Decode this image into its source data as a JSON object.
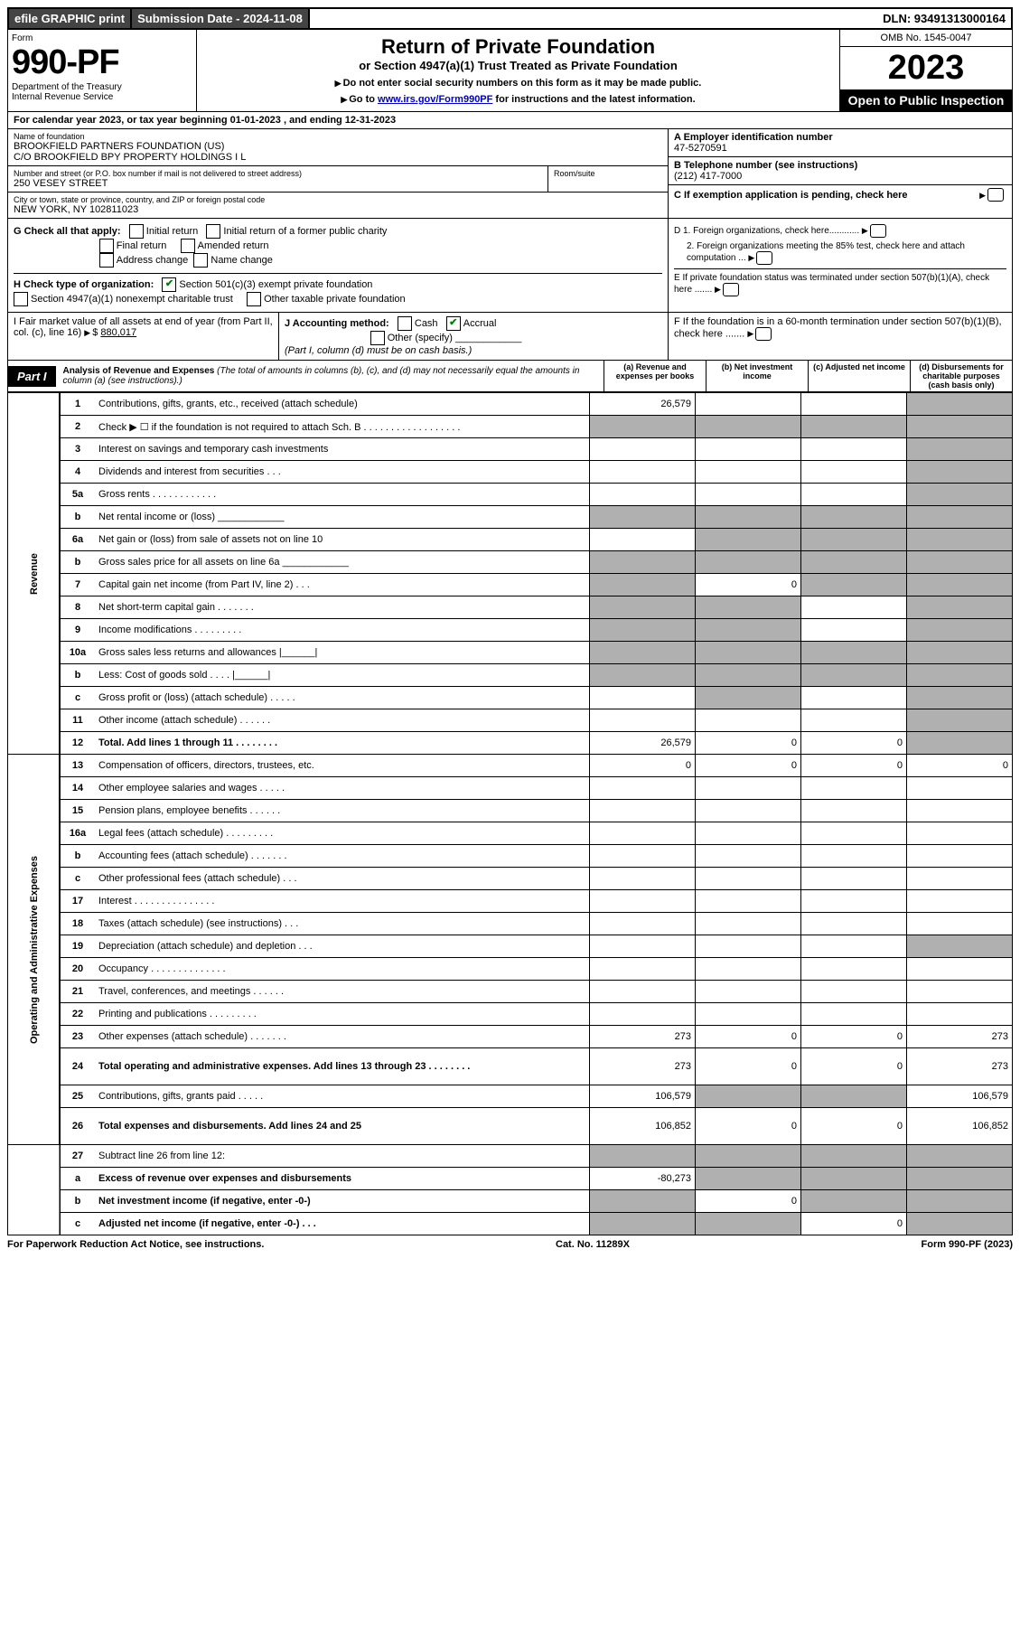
{
  "top_bar": {
    "efile": "efile GRAPHIC print",
    "submission": "Submission Date - 2024-11-08",
    "dln": "DLN: 93491313000164"
  },
  "header": {
    "form": "Form",
    "number": "990-PF",
    "dept1": "Department of the Treasury",
    "dept2": "Internal Revenue Service",
    "title": "Return of Private Foundation",
    "subtitle": "or Section 4947(a)(1) Trust Treated as Private Foundation",
    "note1": "Do not enter social security numbers on this form as it may be made public.",
    "note2_pre": "Go to ",
    "note2_link": "www.irs.gov/Form990PF",
    "note2_post": " for instructions and the latest information.",
    "omb": "OMB No. 1545-0047",
    "year": "2023",
    "open": "Open to Public Inspection"
  },
  "cal_year": "For calendar year 2023, or tax year beginning 01-01-2023    , and ending 12-31-2023",
  "info": {
    "name_label": "Name of foundation",
    "name1": "BROOKFIELD PARTNERS FOUNDATION (US)",
    "name2": "C/O BROOKFIELD BPY PROPERTY HOLDINGS I L",
    "addr_label": "Number and street (or P.O. box number if mail is not delivered to street address)",
    "addr": "250 VESEY STREET",
    "room_label": "Room/suite",
    "city_label": "City or town, state or province, country, and ZIP or foreign postal code",
    "city": "NEW YORK, NY  102811023",
    "a_label": "A Employer identification number",
    "ein": "47-5270591",
    "b_label": "B Telephone number (see instructions)",
    "phone": "(212) 417-7000",
    "c_label": "C If exemption application is pending, check here"
  },
  "g": {
    "label": "G Check all that apply:",
    "initial": "Initial return",
    "final": "Final return",
    "addr_change": "Address change",
    "initial_former": "Initial return of a former public charity",
    "amended": "Amended return",
    "name_change": "Name change"
  },
  "h": {
    "label": "H Check type of organization:",
    "opt1": "Section 501(c)(3) exempt private foundation",
    "opt2": "Section 4947(a)(1) nonexempt charitable trust",
    "opt3": "Other taxable private foundation"
  },
  "d": {
    "d1": "D 1. Foreign organizations, check here............",
    "d2": "2. Foreign organizations meeting the 85% test, check here and attach computation ...",
    "e": "E  If private foundation status was terminated under section 507(b)(1)(A), check here .......",
    "f": "F  If the foundation is in a 60-month termination under section 507(b)(1)(B), check here ......."
  },
  "i": {
    "label": "I Fair market value of all assets at end of year (from Part II, col. (c), line 16)",
    "value": "880,017"
  },
  "j": {
    "label": "J Accounting method:",
    "cash": "Cash",
    "accrual": "Accrual",
    "other": "Other (specify)",
    "note": "(Part I, column (d) must be on cash basis.)"
  },
  "part1": {
    "tag": "Part I",
    "title": "Analysis of Revenue and Expenses",
    "note": " (The total of amounts in columns (b), (c), and (d) may not necessarily equal the amounts in column (a) (see instructions).)",
    "col_a": "(a) Revenue and expenses per books",
    "col_b": "(b) Net investment income",
    "col_c": "(c) Adjusted net income",
    "col_d": "(d) Disbursements for charitable purposes (cash basis only)"
  },
  "rows": [
    {
      "sec": "rev",
      "no": "1",
      "desc": "Contributions, gifts, grants, etc., received (attach schedule)",
      "a": "26,579",
      "b": "",
      "c": "",
      "d": "shaded"
    },
    {
      "sec": "rev",
      "no": "2",
      "desc": "Check ▶ ☐ if the foundation is not required to attach Sch. B  . . . . . . . . . . . . . . . . . .",
      "a": "shaded",
      "b": "shaded",
      "c": "shaded",
      "d": "shaded"
    },
    {
      "sec": "rev",
      "no": "3",
      "desc": "Interest on savings and temporary cash investments",
      "a": "",
      "b": "",
      "c": "",
      "d": "shaded"
    },
    {
      "sec": "rev",
      "no": "4",
      "desc": "Dividends and interest from securities  . . .",
      "a": "",
      "b": "",
      "c": "",
      "d": "shaded"
    },
    {
      "sec": "rev",
      "no": "5a",
      "desc": "Gross rents  . . . . . . . . . . . .",
      "a": "",
      "b": "",
      "c": "",
      "d": "shaded"
    },
    {
      "sec": "rev",
      "no": "b",
      "desc": "Net rental income or (loss)  ____________",
      "a": "shaded",
      "b": "shaded",
      "c": "shaded",
      "d": "shaded"
    },
    {
      "sec": "rev",
      "no": "6a",
      "desc": "Net gain or (loss) from sale of assets not on line 10",
      "a": "",
      "b": "shaded",
      "c": "shaded",
      "d": "shaded"
    },
    {
      "sec": "rev",
      "no": "b",
      "desc": "Gross sales price for all assets on line 6a ____________",
      "a": "shaded",
      "b": "shaded",
      "c": "shaded",
      "d": "shaded"
    },
    {
      "sec": "rev",
      "no": "7",
      "desc": "Capital gain net income (from Part IV, line 2)  . . .",
      "a": "shaded",
      "b": "0",
      "c": "shaded",
      "d": "shaded"
    },
    {
      "sec": "rev",
      "no": "8",
      "desc": "Net short-term capital gain  . . . . . . .",
      "a": "shaded",
      "b": "shaded",
      "c": "",
      "d": "shaded"
    },
    {
      "sec": "rev",
      "no": "9",
      "desc": "Income modifications  . . . . . . . . .",
      "a": "shaded",
      "b": "shaded",
      "c": "",
      "d": "shaded"
    },
    {
      "sec": "rev",
      "no": "10a",
      "desc": "Gross sales less returns and allowances  |______|",
      "a": "shaded",
      "b": "shaded",
      "c": "shaded",
      "d": "shaded"
    },
    {
      "sec": "rev",
      "no": "b",
      "desc": "Less: Cost of goods sold  . . . .  |______|",
      "a": "shaded",
      "b": "shaded",
      "c": "shaded",
      "d": "shaded"
    },
    {
      "sec": "rev",
      "no": "c",
      "desc": "Gross profit or (loss) (attach schedule)  . . . . .",
      "a": "",
      "b": "shaded",
      "c": "",
      "d": "shaded"
    },
    {
      "sec": "rev",
      "no": "11",
      "desc": "Other income (attach schedule)  . . . . . .",
      "a": "",
      "b": "",
      "c": "",
      "d": "shaded"
    },
    {
      "sec": "rev",
      "no": "12",
      "desc": "Total. Add lines 1 through 11  . . . . . . . .",
      "a": "26,579",
      "b": "0",
      "c": "0",
      "d": "shaded",
      "bold": true
    },
    {
      "sec": "exp",
      "no": "13",
      "desc": "Compensation of officers, directors, trustees, etc.",
      "a": "0",
      "b": "0",
      "c": "0",
      "d": "0"
    },
    {
      "sec": "exp",
      "no": "14",
      "desc": "Other employee salaries and wages  . . . . .",
      "a": "",
      "b": "",
      "c": "",
      "d": ""
    },
    {
      "sec": "exp",
      "no": "15",
      "desc": "Pension plans, employee benefits  . . . . . .",
      "a": "",
      "b": "",
      "c": "",
      "d": ""
    },
    {
      "sec": "exp",
      "no": "16a",
      "desc": "Legal fees (attach schedule) . . . . . . . . .",
      "a": "",
      "b": "",
      "c": "",
      "d": ""
    },
    {
      "sec": "exp",
      "no": "b",
      "desc": "Accounting fees (attach schedule) . . . . . . .",
      "a": "",
      "b": "",
      "c": "",
      "d": ""
    },
    {
      "sec": "exp",
      "no": "c",
      "desc": "Other professional fees (attach schedule)  . . .",
      "a": "",
      "b": "",
      "c": "",
      "d": ""
    },
    {
      "sec": "exp",
      "no": "17",
      "desc": "Interest . . . . . . . . . . . . . . .",
      "a": "",
      "b": "",
      "c": "",
      "d": ""
    },
    {
      "sec": "exp",
      "no": "18",
      "desc": "Taxes (attach schedule) (see instructions)  . . .",
      "a": "",
      "b": "",
      "c": "",
      "d": ""
    },
    {
      "sec": "exp",
      "no": "19",
      "desc": "Depreciation (attach schedule) and depletion  . . .",
      "a": "",
      "b": "",
      "c": "",
      "d": "shaded"
    },
    {
      "sec": "exp",
      "no": "20",
      "desc": "Occupancy . . . . . . . . . . . . . .",
      "a": "",
      "b": "",
      "c": "",
      "d": ""
    },
    {
      "sec": "exp",
      "no": "21",
      "desc": "Travel, conferences, and meetings . . . . . .",
      "a": "",
      "b": "",
      "c": "",
      "d": ""
    },
    {
      "sec": "exp",
      "no": "22",
      "desc": "Printing and publications . . . . . . . . .",
      "a": "",
      "b": "",
      "c": "",
      "d": ""
    },
    {
      "sec": "exp",
      "no": "23",
      "desc": "Other expenses (attach schedule) . . . . . . .",
      "a": "273",
      "b": "0",
      "c": "0",
      "d": "273"
    },
    {
      "sec": "exp",
      "no": "24",
      "desc": "Total operating and administrative expenses. Add lines 13 through 23  . . . . . . . .",
      "a": "273",
      "b": "0",
      "c": "0",
      "d": "273",
      "bold": true,
      "tall": true
    },
    {
      "sec": "exp",
      "no": "25",
      "desc": "Contributions, gifts, grants paid  . . . . .",
      "a": "106,579",
      "b": "shaded",
      "c": "shaded",
      "d": "106,579"
    },
    {
      "sec": "exp",
      "no": "26",
      "desc": "Total expenses and disbursements. Add lines 24 and 25",
      "a": "106,852",
      "b": "0",
      "c": "0",
      "d": "106,852",
      "bold": true,
      "tall": true
    },
    {
      "sec": "net",
      "no": "27",
      "desc": "Subtract line 26 from line 12:",
      "a": "shaded",
      "b": "shaded",
      "c": "shaded",
      "d": "shaded"
    },
    {
      "sec": "net",
      "no": "a",
      "desc": "Excess of revenue over expenses and disbursements",
      "a": "-80,273",
      "b": "shaded",
      "c": "shaded",
      "d": "shaded",
      "bold": true
    },
    {
      "sec": "net",
      "no": "b",
      "desc": "Net investment income (if negative, enter -0-)",
      "a": "shaded",
      "b": "0",
      "c": "shaded",
      "d": "shaded",
      "bold": true
    },
    {
      "sec": "net",
      "no": "c",
      "desc": "Adjusted net income (if negative, enter -0-)  . . .",
      "a": "shaded",
      "b": "shaded",
      "c": "0",
      "d": "shaded",
      "bold": true
    }
  ],
  "side_labels": {
    "rev": "Revenue",
    "exp": "Operating and Administrative Expenses"
  },
  "footer": {
    "left": "For Paperwork Reduction Act Notice, see instructions.",
    "mid": "Cat. No. 11289X",
    "right": "Form 990-PF (2023)"
  }
}
